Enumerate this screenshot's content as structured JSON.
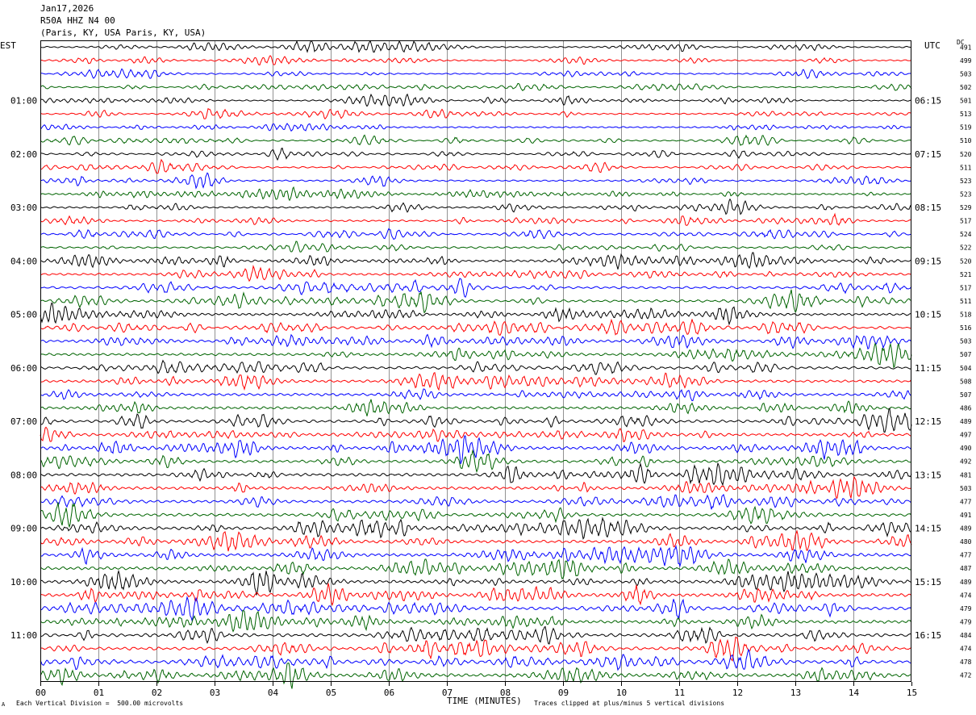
{
  "header": {
    "date": "Jan17,2026",
    "station": "R50A HHZ N4 00",
    "location": "(Paris, KY, USA Paris, KY, USA)"
  },
  "left_timezone": "EST",
  "right_timezone": "UTC",
  "dc_label": "DC",
  "footer": {
    "scale_note": "Each Vertical Division =  500.00 microvolts",
    "clip_note": "Traces clipped at plus/minus 5 vertical divisions",
    "mark": "A"
  },
  "chart_data": {
    "type": "line",
    "title": "",
    "xlabel": "TIME (MINUTES)",
    "ylabel": "",
    "xlim": [
      0,
      15
    ],
    "x_ticks": [
      "00",
      "01",
      "02",
      "03",
      "04",
      "05",
      "06",
      "07",
      "08",
      "09",
      "10",
      "11",
      "12",
      "13",
      "14",
      "15"
    ],
    "left_hour_labels": [
      "01:00",
      "02:00",
      "03:00",
      "04:00",
      "05:00",
      "06:00",
      "07:00",
      "08:00",
      "09:00",
      "10:00",
      "11:00"
    ],
    "right_hour_labels": [
      "06:15",
      "07:15",
      "08:15",
      "09:15",
      "10:15",
      "11:15",
      "12:15",
      "13:15",
      "14:15",
      "15:15",
      "16:15"
    ],
    "trace_colors": [
      "#000000",
      "#ff0000",
      "#0000ff",
      "#006400"
    ],
    "trace_count": 48,
    "trace_interval_minutes": 15,
    "dc_offsets": [
      491,
      499,
      503,
      502,
      501,
      513,
      519,
      510,
      520,
      511,
      523,
      523,
      529,
      517,
      524,
      522,
      520,
      521,
      517,
      511,
      518,
      516,
      503,
      507,
      504,
      508,
      507,
      486,
      489,
      497,
      490,
      492,
      481,
      503,
      477,
      491,
      489,
      480,
      477,
      487,
      489,
      474,
      479,
      479,
      484,
      474,
      478,
      472
    ],
    "amplitude_level": [
      0.35,
      0.32,
      0.32,
      0.32,
      0.32,
      0.34,
      0.36,
      0.36,
      0.38,
      0.38,
      0.4,
      0.4,
      0.42,
      0.42,
      0.44,
      0.48,
      0.52,
      0.52,
      0.56,
      0.58,
      0.58,
      0.6,
      0.62,
      0.6,
      0.62,
      0.62,
      0.62,
      0.62,
      0.64,
      0.66,
      0.7,
      0.66,
      0.66,
      0.66,
      0.66,
      0.68,
      0.7,
      0.7,
      0.72,
      0.74,
      0.74,
      0.74,
      0.72,
      0.72,
      0.72,
      0.72,
      0.74,
      0.76
    ]
  }
}
